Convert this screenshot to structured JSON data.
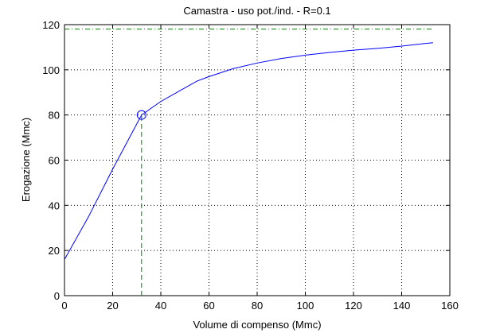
{
  "chart_data": {
    "type": "line",
    "title": "Camastra  -  uso pot./ind.  -   R=0.1",
    "xlabel": "Volume di compenso (Mmc)",
    "ylabel": "Erogazione (Mmc)",
    "xlim": [
      0,
      160
    ],
    "xticks": [
      0,
      20,
      40,
      60,
      80,
      100,
      120,
      140,
      160
    ],
    "ylim": [
      0,
      120
    ],
    "yticks": [
      0,
      20,
      40,
      60,
      80,
      100,
      120
    ],
    "grid": true,
    "series": [
      {
        "color": "#0000ff",
        "style": "solid",
        "x": [
          0,
          10,
          20,
          30,
          32,
          40,
          50,
          55,
          60,
          70,
          80,
          90,
          100,
          110,
          120,
          130,
          140,
          150,
          153
        ],
        "values": [
          16,
          35,
          56,
          76,
          80,
          86,
          92,
          95,
          97,
          100.5,
          103,
          105,
          106.5,
          107.7,
          108.7,
          109.5,
          110.5,
          111.7,
          112
        ]
      },
      {
        "color": "#008000",
        "style": "dashdot",
        "x": [
          0,
          153
        ],
        "values": [
          118,
          118
        ]
      },
      {
        "color": "#008000",
        "style": "dashed",
        "x": [
          32,
          32
        ],
        "values": [
          0,
          80
        ]
      },
      {
        "color": "#0000ff",
        "style": "marker",
        "x": [
          32
        ],
        "values": [
          80
        ]
      }
    ]
  }
}
